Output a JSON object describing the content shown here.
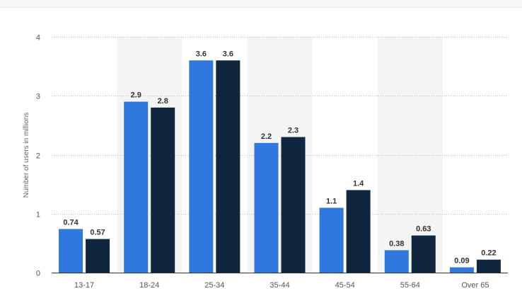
{
  "chart_data": {
    "type": "bar",
    "title": "",
    "xlabel": "",
    "ylabel": "Number of users in millions",
    "ylim": [
      0,
      4
    ],
    "yticks": [
      "0",
      "1",
      "2",
      "3",
      "4"
    ],
    "grid": true,
    "legend": "none",
    "categories": [
      "13-17",
      "18-24",
      "25-34",
      "35-44",
      "45-54",
      "55-64",
      "Over 65"
    ],
    "series": [
      {
        "values": [
          0.74,
          2.9,
          3.6,
          2.2,
          1.1,
          0.38,
          0.09
        ],
        "labels": [
          "0.74",
          "2.9",
          "3.6",
          "2.2",
          "1.1",
          "0.38",
          "0.09"
        ],
        "color": "#2f78dd"
      },
      {
        "values": [
          0.57,
          2.8,
          3.6,
          2.3,
          1.4,
          0.63,
          0.22
        ],
        "labels": [
          "0.57",
          "2.8",
          "3.6",
          "2.3",
          "1.4",
          "0.63",
          "0.22"
        ],
        "color": "#10263f"
      }
    ],
    "band_color": "#f4f4f4"
  }
}
